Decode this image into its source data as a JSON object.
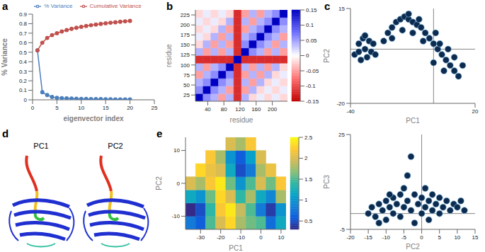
{
  "chart_data": [
    {
      "panel": "a",
      "type": "line",
      "x_label": "eigenvector index",
      "y_label": "% Variance",
      "x": [
        1,
        2,
        3,
        4,
        5,
        6,
        7,
        8,
        9,
        10,
        11,
        12,
        13,
        14,
        15,
        16,
        17,
        18,
        19,
        20
      ],
      "xlim": [
        0,
        25
      ],
      "xticks": [
        0,
        5,
        10,
        15,
        20,
        25
      ],
      "ylim": [
        0,
        0.9
      ],
      "yticks": [
        0,
        0.1,
        0.2,
        0.3,
        0.4,
        0.5,
        0.6,
        0.7,
        0.8,
        0.9
      ],
      "legend": "top",
      "series": [
        {
          "name": "% Variance",
          "color": "#4a7ebb",
          "marker": "circle",
          "values": [
            0.52,
            0.08,
            0.05,
            0.03,
            0.02,
            0.018,
            0.015,
            0.013,
            0.011,
            0.01,
            0.009,
            0.008,
            0.007,
            0.007,
            0.006,
            0.006,
            0.005,
            0.005,
            0.005,
            0.004
          ]
        },
        {
          "name": "Cumulative Variance",
          "color": "#c0504d",
          "marker": "circle",
          "values": [
            0.52,
            0.6,
            0.65,
            0.68,
            0.7,
            0.718,
            0.733,
            0.746,
            0.757,
            0.767,
            0.776,
            0.784,
            0.791,
            0.798,
            0.804,
            0.81,
            0.815,
            0.82,
            0.825,
            0.829
          ]
        }
      ]
    },
    {
      "panel": "b",
      "type": "heatmap",
      "x_label": "residue",
      "y_label": "residue",
      "xlim": [
        9.5,
        237.5
      ],
      "xticks": [
        40,
        80,
        120,
        160,
        200
      ],
      "ylim": [
        9.5,
        237.5
      ],
      "yticks": [
        25,
        50,
        75,
        100,
        125,
        150,
        175,
        200,
        225
      ],
      "cells": {
        "x": [
          19,
          38,
          57,
          76,
          95,
          114,
          133,
          152,
          171,
          190,
          209,
          228
        ],
        "y": [
          19,
          38,
          57,
          76,
          95,
          114,
          133,
          152,
          171,
          190,
          209,
          228
        ],
        "values": [
          [
            0.15,
            0.06,
            0.04,
            -0.05,
            0.04,
            -0.12,
            0.04,
            -0.02,
            0.01,
            -0.02,
            0.01,
            -0.02
          ],
          [
            0.06,
            0.15,
            0.06,
            0.04,
            -0.05,
            -0.12,
            -0.05,
            0.04,
            -0.02,
            0.01,
            -0.02,
            0.01
          ],
          [
            0.04,
            0.06,
            0.15,
            0.06,
            0.04,
            -0.12,
            0.04,
            -0.05,
            0.04,
            -0.02,
            0.01,
            -0.02
          ],
          [
            -0.05,
            0.04,
            0.06,
            0.15,
            0.06,
            -0.12,
            -0.05,
            0.04,
            -0.05,
            0.04,
            -0.02,
            0.01
          ],
          [
            0.04,
            -0.05,
            0.04,
            0.06,
            0.15,
            -0.12,
            0.04,
            -0.05,
            0.04,
            -0.05,
            0.04,
            -0.02
          ],
          [
            -0.12,
            -0.12,
            -0.12,
            -0.12,
            -0.12,
            0.15,
            -0.12,
            -0.12,
            -0.12,
            -0.12,
            -0.12,
            -0.12
          ],
          [
            0.04,
            -0.05,
            0.04,
            -0.05,
            0.04,
            -0.12,
            0.15,
            0.06,
            0.04,
            -0.05,
            0.04,
            -0.05
          ],
          [
            -0.02,
            0.04,
            -0.05,
            0.04,
            -0.05,
            -0.12,
            0.06,
            0.15,
            0.06,
            0.04,
            -0.05,
            0.04
          ],
          [
            0.01,
            -0.02,
            0.04,
            -0.05,
            0.04,
            -0.12,
            0.04,
            0.06,
            0.15,
            0.06,
            0.04,
            -0.05
          ],
          [
            -0.02,
            0.01,
            -0.02,
            0.04,
            -0.05,
            -0.12,
            -0.05,
            0.04,
            0.06,
            0.15,
            0.06,
            0.04
          ],
          [
            0.01,
            -0.02,
            0.01,
            -0.02,
            0.04,
            -0.12,
            0.04,
            -0.05,
            0.04,
            0.06,
            0.15,
            0.06
          ],
          [
            -0.02,
            0.01,
            -0.02,
            0.01,
            -0.02,
            -0.12,
            -0.05,
            0.04,
            -0.05,
            0.04,
            0.06,
            0.15
          ]
        ]
      },
      "colorbar": {
        "range": [
          -0.15,
          0.15
        ],
        "ticks": [
          0.15,
          0.1,
          0.05,
          0,
          -0.05,
          -0.1,
          -0.15
        ],
        "colors": [
          "#c00000",
          "#ff7070",
          "#ffffff",
          "#7070ff",
          "#0000c0"
        ]
      }
    },
    {
      "panel": "c",
      "type": "scatter",
      "plots": [
        {
          "x_label": "PC1",
          "y_label": "PC2",
          "color": "#0d2b4e",
          "marker": "circle",
          "xlim": [
            -40,
            20
          ],
          "xticks": [
            -40,
            20
          ],
          "ylim": [
            -20,
            15
          ],
          "yticks": [
            -20,
            15
          ],
          "x": [
            -38,
            -36,
            -35,
            -34,
            -33,
            -32,
            -31,
            -30,
            -29,
            -28,
            -36,
            -33,
            -24,
            -22,
            -20,
            -18,
            -16,
            -14,
            -12,
            -10,
            -8,
            -6,
            -4,
            -2,
            0,
            2,
            4,
            6,
            8,
            10,
            12,
            5,
            3,
            -5,
            -10,
            -15,
            -20,
            0,
            7,
            10,
            14,
            -12,
            -7,
            1
          ],
          "y": [
            -2,
            2,
            -4,
            4,
            0,
            -3,
            3,
            -1,
            2,
            -2,
            -1,
            5,
            3,
            6,
            8,
            10,
            11,
            12,
            11,
            10,
            9,
            8,
            6,
            4,
            2,
            0,
            -2,
            -4,
            -6,
            -8,
            -10,
            -8,
            2,
            3,
            6,
            7,
            4,
            -5,
            0,
            -3,
            -6,
            13,
            11,
            6
          ]
        },
        {
          "x_label": "PC2",
          "y_label": "PC3",
          "color": "#0d2b4e",
          "marker": "circle",
          "xlim": [
            -20,
            15
          ],
          "xticks": [
            -20,
            -15,
            -10,
            -5,
            0,
            5,
            10,
            15
          ],
          "ylim": [
            -5,
            25
          ],
          "yticks": [
            -5,
            25
          ],
          "x": [
            -15,
            -14,
            -13,
            -12,
            -11,
            -10,
            -10,
            -9,
            -8,
            -8,
            -7,
            -6,
            -6,
            -5,
            -5,
            -4,
            -4,
            -3,
            -3,
            -2,
            -2,
            -1,
            0,
            0,
            1,
            1,
            2,
            2,
            3,
            3,
            4,
            5,
            5,
            6,
            7,
            8,
            9,
            10,
            11,
            12,
            -12,
            -9
          ],
          "y": [
            0,
            2,
            -1,
            3,
            1,
            4,
            -2,
            2,
            5,
            0,
            3,
            6,
            -1,
            2,
            8,
            4,
            12,
            18,
            1,
            6,
            -3,
            3,
            5,
            0,
            2,
            8,
            4,
            -2,
            1,
            6,
            3,
            0,
            5,
            2,
            4,
            1,
            3,
            2,
            4,
            1,
            -3,
            6
          ]
        }
      ]
    },
    {
      "panel": "d",
      "type": "image",
      "labels": [
        "PC1",
        "PC2"
      ]
    },
    {
      "panel": "e",
      "type": "contour",
      "x_label": "PC1",
      "y_label": "PC2",
      "xlim": [
        -37.5,
        12.5
      ],
      "xticks": [
        -30,
        -20,
        -10,
        0,
        10
      ],
      "ylim": [
        -14,
        14
      ],
      "yticks": [
        -10,
        0,
        10
      ],
      "cells": {
        "x": [
          -35,
          -30,
          -25,
          -20,
          -15,
          -10,
          -5,
          0,
          5,
          10
        ],
        "y": [
          -12,
          -8,
          -4,
          0,
          4,
          8,
          12
        ],
        "values": [
          [
            0.8,
            0.6,
            1.5,
            2.0,
            2.3,
            1.8,
            1.6,
            1.5,
            0.7,
            1.2
          ],
          [
            0.3,
            0.5,
            1.4,
            2.2,
            2.4,
            1.9,
            1.5,
            0.8,
            0.4,
            1.0
          ],
          [
            1.2,
            1.0,
            1.6,
            2.3,
            2.0,
            1.4,
            1.8,
            1.2,
            0.9,
            1.8
          ],
          [
            2.0,
            1.8,
            2.2,
            2.4,
            1.6,
            1.0,
            1.5,
            2.0,
            1.6,
            2.2
          ],
          [
            null,
            2.3,
            2.1,
            2.0,
            1.2,
            0.5,
            0.8,
            1.8,
            2.1,
            null
          ],
          [
            null,
            null,
            2.2,
            1.8,
            1.0,
            0.6,
            1.1,
            2.0,
            null,
            null
          ],
          [
            null,
            null,
            null,
            null,
            2.0,
            1.8,
            2.2,
            null,
            null,
            null
          ]
        ]
      },
      "colorbar": {
        "range": [
          0.3,
          2.5
        ],
        "ticks": [
          0.5,
          1,
          1.5,
          2,
          2.5
        ],
        "colors": [
          "#352a87",
          "#0f5cdd",
          "#1481d6",
          "#06a4ca",
          "#2eb7a4",
          "#87bf77",
          "#d1bb59",
          "#fec832",
          "#f9fb0e"
        ]
      }
    }
  ]
}
